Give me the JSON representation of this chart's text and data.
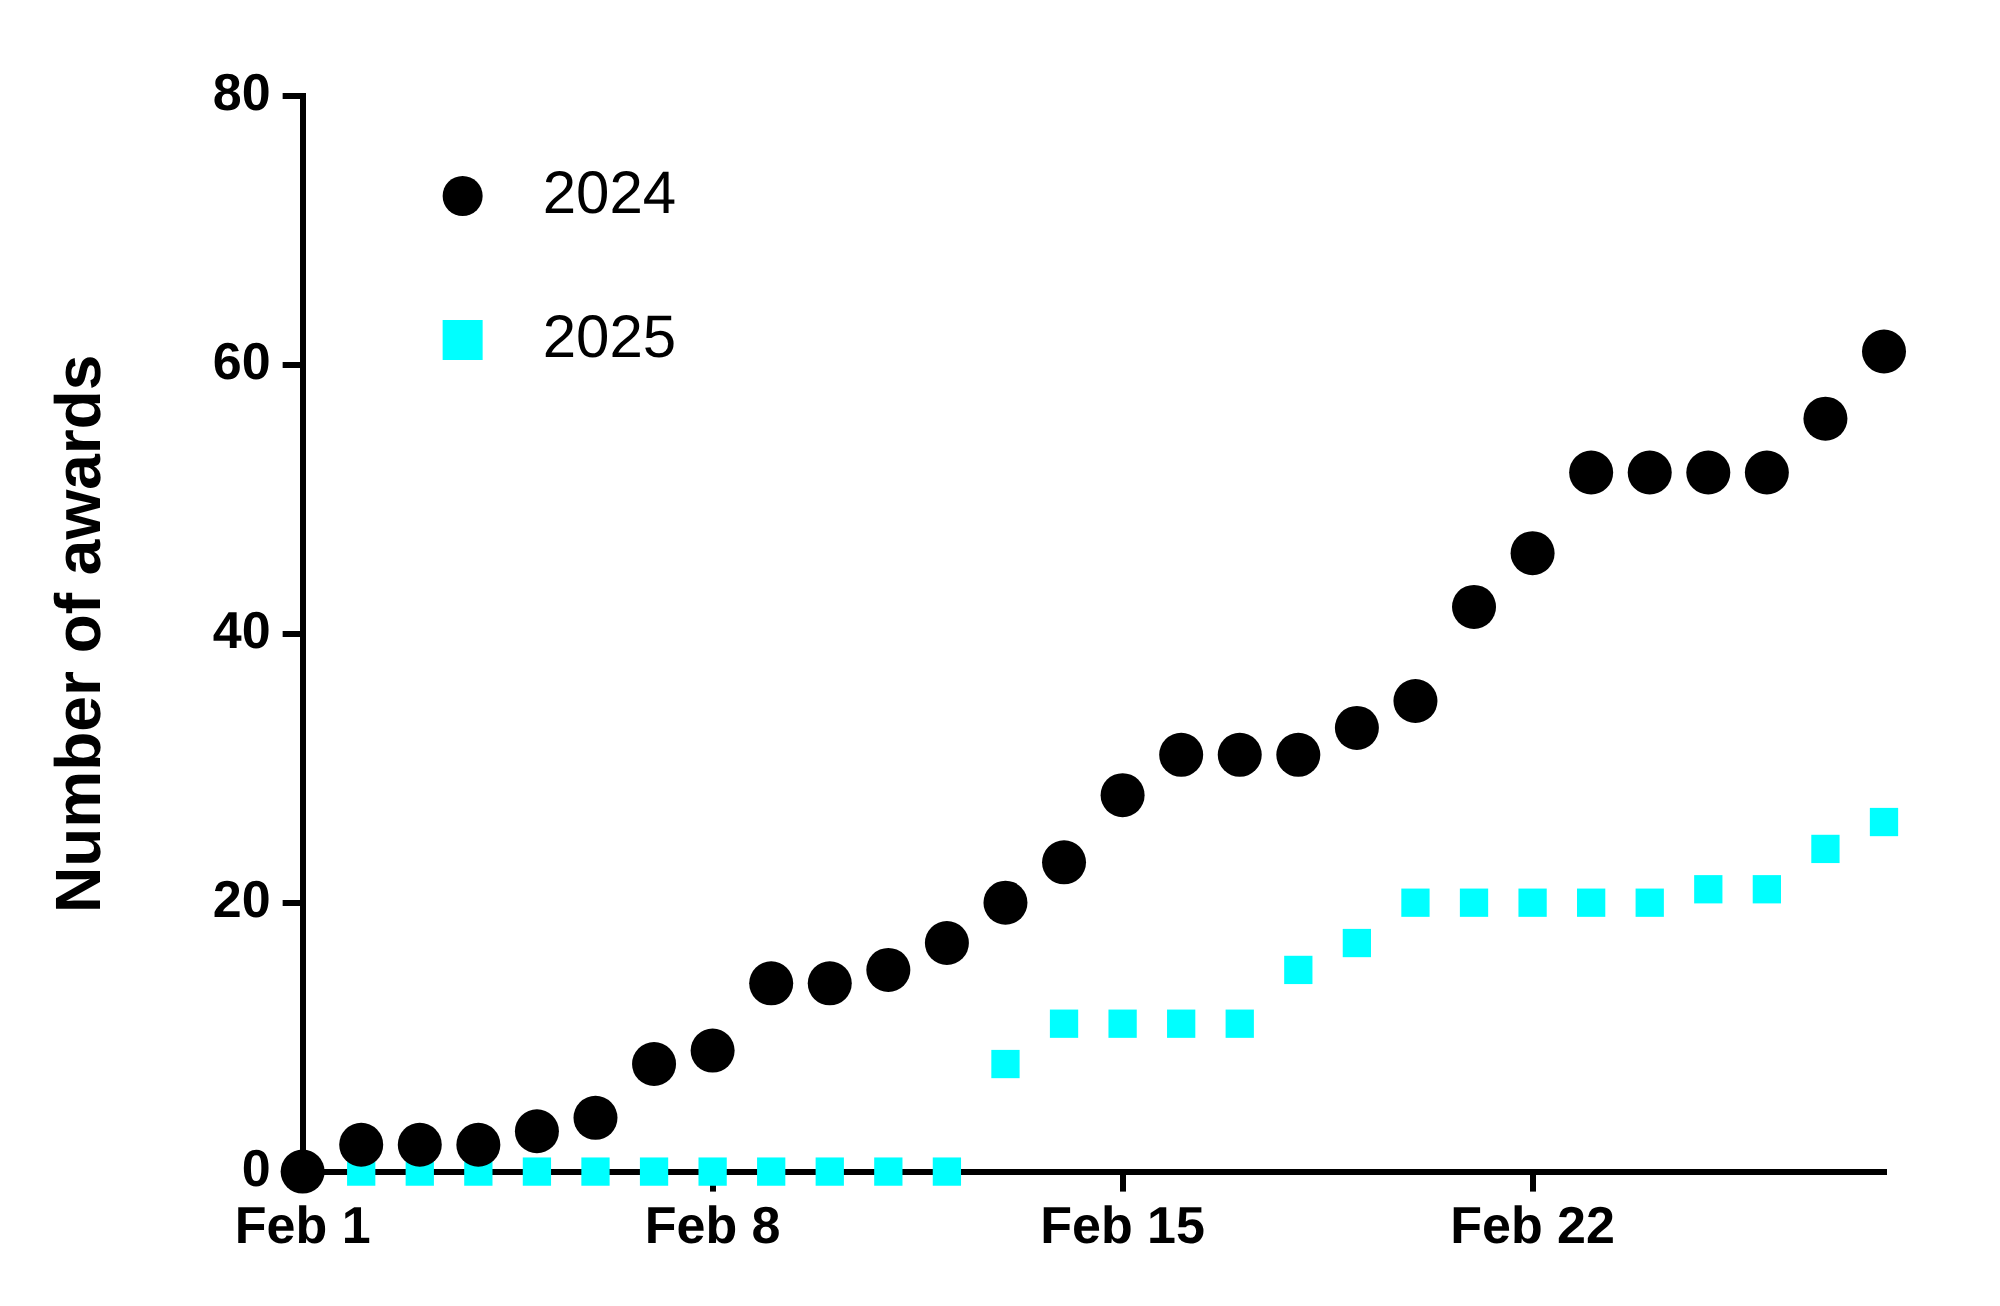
{
  "chart_data": {
    "type": "scatter",
    "ylabel": "Number of awards",
    "categories": [
      "Feb 1",
      null,
      null,
      null,
      null,
      null,
      null,
      "Feb 8",
      null,
      null,
      null,
      null,
      null,
      null,
      "Feb 15",
      null,
      null,
      null,
      null,
      null,
      null,
      "Feb 22",
      null,
      null,
      null,
      null,
      null,
      null
    ],
    "ylim": [
      0,
      80
    ],
    "yticks": [
      0,
      20,
      40,
      60,
      80
    ],
    "grid": false,
    "legend": "top left",
    "series": [
      {
        "name": "2024",
        "color": "#000000",
        "marker": "circle",
        "values": [
          0,
          2,
          2,
          2,
          3,
          4,
          8,
          9,
          14,
          14,
          15,
          17,
          20,
          23,
          28,
          31,
          31,
          31,
          33,
          35,
          42,
          46,
          52,
          52,
          52,
          52,
          56,
          61
        ]
      },
      {
        "name": "2025",
        "color": "#00ffff",
        "marker": "square",
        "values": [
          null,
          0,
          0,
          0,
          0,
          0,
          0,
          0,
          0,
          0,
          0,
          0,
          8,
          11,
          11,
          11,
          11,
          15,
          17,
          20,
          20,
          20,
          20,
          20,
          21,
          21,
          24,
          26
        ]
      }
    ]
  }
}
